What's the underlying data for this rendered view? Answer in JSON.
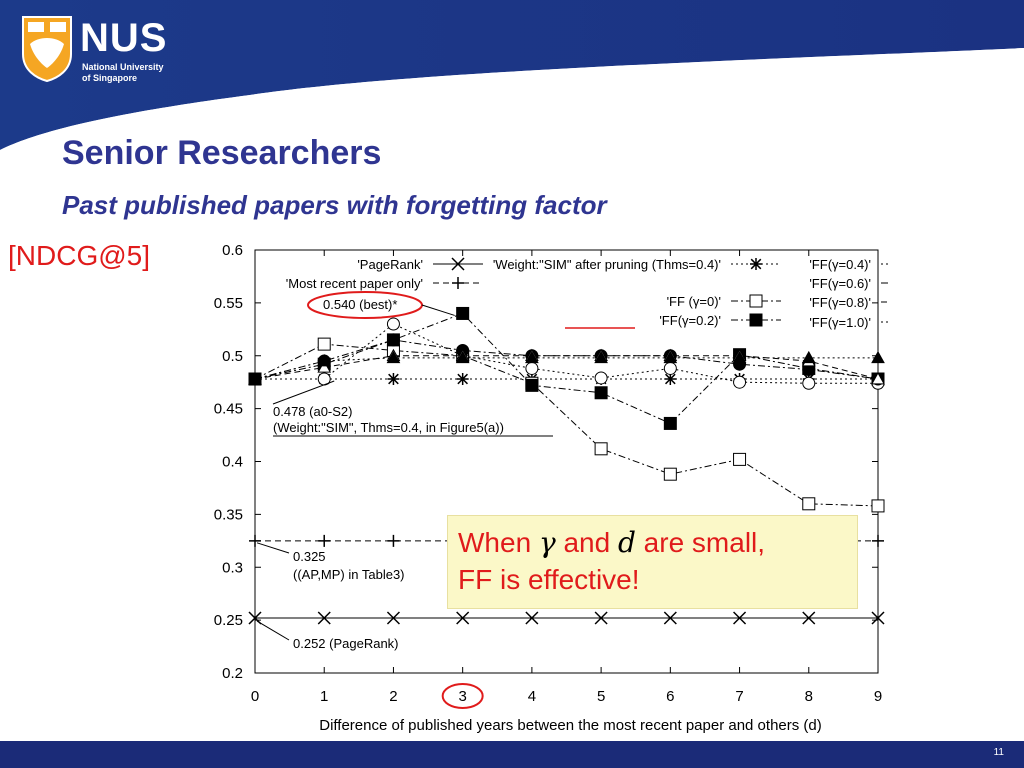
{
  "header": {
    "logo_text": "NUS",
    "logo_subtext_1": "National University",
    "logo_subtext_2": "of Singapore",
    "title": "Senior Researchers",
    "subtitle": "Past published papers with forgetting factor"
  },
  "left_label": "[NDCG@5]",
  "note": {
    "part1": "When",
    "symbol1": "γ",
    "part2": "and",
    "symbol2": "d",
    "part3": "are small,",
    "line2": "FF is effective!"
  },
  "footer": {
    "page_number": "11"
  },
  "colors": {
    "brand_blue": "#2f3591",
    "accent_red": "#e01b1b",
    "footer_blue": "#1b2b78",
    "note_bg": "#fbf8c8"
  },
  "chart_data": {
    "type": "line",
    "xlabel": "Difference of published years between the most recent paper and others (d)",
    "ylabel": "",
    "x": [
      0,
      1,
      2,
      3,
      4,
      5,
      6,
      7,
      8,
      9
    ],
    "xlim": [
      0,
      9
    ],
    "ylim": [
      0.2,
      0.6
    ],
    "yticks": [
      "0.2",
      "0.25",
      "0.3",
      "0.35",
      "0.4",
      "0.45",
      "0.5",
      "0.55",
      "0.6"
    ],
    "xticks": [
      "0",
      "1",
      "2",
      "3",
      "4",
      "5",
      "6",
      "7",
      "8",
      "9"
    ],
    "grid": false,
    "series": [
      {
        "name": "'PageRank'",
        "marker": "x",
        "dash": "solid",
        "values": [
          0.252,
          0.252,
          0.252,
          0.252,
          0.252,
          0.252,
          0.252,
          0.252,
          0.252,
          0.252
        ]
      },
      {
        "name": "'Most recent paper only'",
        "marker": "plus",
        "dash": "dashed",
        "values": [
          0.325,
          0.325,
          0.325,
          0.325,
          0.325,
          0.325,
          0.325,
          0.325,
          0.325,
          0.325
        ]
      },
      {
        "name": "'Weight:\"SIM\" after pruning (Thms=0.4)'",
        "marker": "asterisk",
        "dash": "dotted",
        "values": [
          0.478,
          0.478,
          0.478,
          0.478,
          0.478,
          0.478,
          0.478,
          0.478,
          0.478,
          0.478
        ]
      },
      {
        "name": "'FF (γ=0)'",
        "marker": "open-square",
        "dash": "dashdot",
        "values": [
          0.478,
          0.511,
          0.505,
          0.5,
          0.474,
          0.412,
          0.388,
          0.402,
          0.36,
          0.358
        ]
      },
      {
        "name": "'FF(γ=0.2)'",
        "marker": "filled-square",
        "dash": "dashdot",
        "values": [
          0.478,
          0.492,
          0.515,
          0.54,
          0.472,
          0.465,
          0.436,
          0.501,
          0.488,
          0.478
        ]
      },
      {
        "name": "'FF(γ=0.4)'",
        "marker": "open-circle",
        "dash": "dotted",
        "values": [
          0.478,
          0.478,
          0.53,
          0.5,
          0.488,
          0.479,
          0.488,
          0.475,
          0.474,
          0.474
        ]
      },
      {
        "name": "'FF(γ=0.6)'",
        "marker": "filled-circle",
        "dash": "dashdot",
        "values": [
          0.478,
          0.495,
          0.515,
          0.505,
          0.5,
          0.5,
          0.5,
          0.492,
          0.487,
          0.478
        ]
      },
      {
        "name": "'FF(γ=0.8)'",
        "marker": "open-triangle",
        "dash": "dashed",
        "values": [
          0.478,
          0.489,
          0.5,
          0.5,
          0.5,
          0.5,
          0.5,
          0.5,
          0.495,
          0.478
        ]
      },
      {
        "name": "'FF(γ=1.0)'",
        "marker": "filled-triangle",
        "dash": "dotted",
        "values": [
          0.478,
          0.495,
          0.498,
          0.498,
          0.498,
          0.498,
          0.498,
          0.498,
          0.498,
          0.498
        ]
      }
    ],
    "annotations": [
      {
        "text": "0.540 (best)*"
      },
      {
        "text": "0.478 (a0-S2)"
      },
      {
        "text": "(Weight:\"SIM\", Thms=0.4, in Figure5(a))"
      },
      {
        "text": "0.325"
      },
      {
        "text": "((AP,MP) in Table3)"
      },
      {
        "text": "0.252 (PageRank)"
      }
    ]
  }
}
